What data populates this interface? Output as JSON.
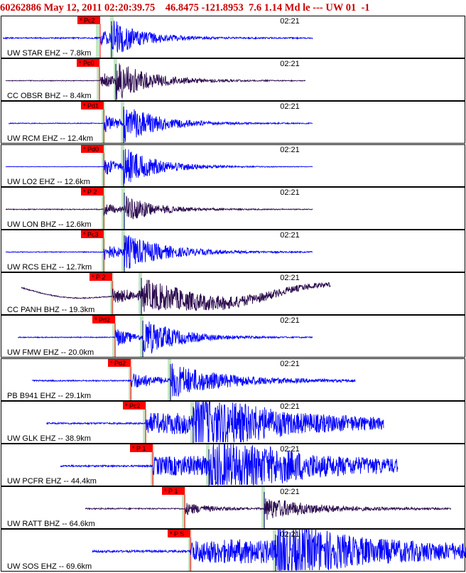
{
  "header": {
    "event_id": "60262886",
    "datetime": "May 12, 2011 02:20:39.75",
    "lat": "46.8475",
    "lon": "-121.8953",
    "depth": "7.6",
    "magnitude": "1.14",
    "mag_type": "Md",
    "event_type": "le",
    "quality": "---",
    "network_src": "UW 01",
    "version": "-1"
  },
  "colors": {
    "header_text": "#cc0000",
    "trace_blue": "#0000ff",
    "trace_purple": "#2b0a4d",
    "pick_marker": "#ff0000",
    "pick_label_text": "#000000",
    "pick_window": "#c6e6c6",
    "panel_border": "#000000"
  },
  "chart_data": {
    "type": "seismogram",
    "time_mark_label": "02:21",
    "panels": [
      {
        "label": "UW STAR EHZ -- 7.8km",
        "pick": "* Pc2",
        "color": "blue",
        "onset": 141,
        "s_arrival": 157,
        "windows": [
          137,
          157
        ],
        "start": 4,
        "end": 440,
        "amp": 22,
        "noise": 0.15,
        "duration": 45,
        "style": "flat"
      },
      {
        "label": "CC OBSR BHZ -- 8.4km",
        "pick": "* Pc0",
        "color": "purple",
        "onset": 140,
        "s_arrival": 163,
        "windows": [
          138,
          162
        ],
        "start": 8,
        "end": 430,
        "amp": 23,
        "noise": 0.08,
        "duration": 55,
        "style": "flat"
      },
      {
        "label": "UW RCM EHZ -- 12.4km",
        "pick": "* Pd1",
        "color": "blue",
        "onset": 146,
        "s_arrival": 174,
        "windows": [
          145,
          172
        ],
        "start": 12,
        "end": 440,
        "amp": 25,
        "noise": 0.1,
        "duration": 50,
        "style": "flat"
      },
      {
        "label": "UW LO2 EHZ -- 12.6km",
        "pick": "* Pd0",
        "color": "blue",
        "onset": 146,
        "s_arrival": 174,
        "windows": [
          145,
          172
        ],
        "start": 8,
        "end": 440,
        "amp": 24,
        "noise": 0.05,
        "duration": 50,
        "style": "flat"
      },
      {
        "label": "UW LON BHZ -- 12.6km",
        "pick": "* P 2",
        "color": "purple",
        "onset": 146,
        "s_arrival": 175,
        "windows": [
          145,
          173
        ],
        "start": 8,
        "end": 440,
        "amp": 18,
        "noise": 0.1,
        "duration": 45,
        "style": "flat"
      },
      {
        "label": "UW RCS EHZ -- 12.7km",
        "pick": "* Pc3",
        "color": "blue",
        "onset": 146,
        "s_arrival": 175,
        "windows": [
          145,
          173
        ],
        "start": 8,
        "end": 440,
        "amp": 22,
        "noise": 0.1,
        "duration": 60,
        "style": "flat"
      },
      {
        "label": "CC PANH BHZ -- 19.3km",
        "pick": "* P 2",
        "color": "purple",
        "onset": 158,
        "s_arrival": 199,
        "windows": [
          157,
          197
        ],
        "start": 30,
        "end": 465,
        "amp": 18,
        "noise": 0.12,
        "duration": 140,
        "style": "drift"
      },
      {
        "label": "UW FMW EHZ -- 20.0km",
        "pick": "* Pd2",
        "color": "blue",
        "onset": 162,
        "s_arrival": 201,
        "windows": [
          160,
          199
        ],
        "start": 25,
        "end": 440,
        "amp": 26,
        "noise": 0.1,
        "duration": 50,
        "style": "flat"
      },
      {
        "label": "PB B941 EHZ -- 29.1km",
        "pick": "* Pd2",
        "color": "blue",
        "onset": 184,
        "s_arrival": 240,
        "windows": [
          183,
          238
        ],
        "start": 45,
        "end": 500,
        "amp": 22,
        "noise": 0.15,
        "duration": 80,
        "style": "flat"
      },
      {
        "label": "UW GLK EHZ -- 38.9km",
        "pick": "* Pc2",
        "color": "blue",
        "onset": 205,
        "s_arrival": 272,
        "windows": [
          203,
          270
        ],
        "start": 65,
        "end": 540,
        "amp": 24,
        "noise": 0.2,
        "duration": 220,
        "style": "long"
      },
      {
        "label": "UW PCFR EHZ -- 44.4km",
        "pick": "* P 1",
        "color": "blue",
        "onset": 215,
        "s_arrival": 294,
        "windows": [
          214,
          292
        ],
        "start": 85,
        "end": 560,
        "amp": 22,
        "noise": 0.2,
        "duration": 270,
        "style": "long"
      },
      {
        "label": "UW RATT BHZ -- 64.6km",
        "pick": "* P 1",
        "color": "purple",
        "onset": 260,
        "s_arrival": 372,
        "windows": [
          258,
          370
        ],
        "start": 120,
        "end": 635,
        "amp": 16,
        "noise": 0.15,
        "duration": 70,
        "style": "flat"
      },
      {
        "label": "UW SOS EHZ -- 69.6km",
        "pick": "* P S",
        "color": "blue",
        "onset": 268,
        "s_arrival": 388,
        "windows": [
          267,
          386
        ],
        "start": 130,
        "end": 656,
        "amp": 26,
        "noise": 0.25,
        "duration": 260,
        "style": "long"
      }
    ]
  }
}
